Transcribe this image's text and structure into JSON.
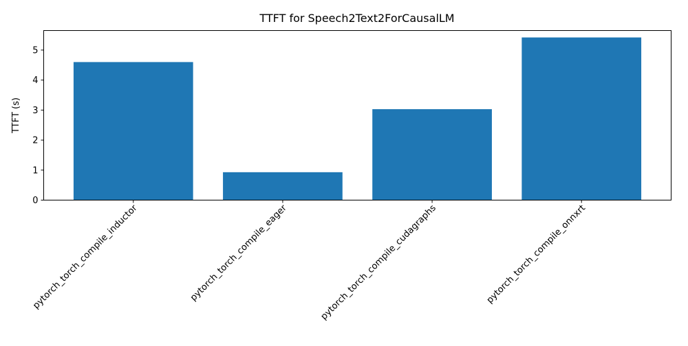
{
  "chart_data": {
    "type": "bar",
    "title": "TTFT for Speech2Text2ForCausalLM",
    "xlabel": "",
    "ylabel": "TTFT (s)",
    "categories": [
      "pytorch_torch_compile_inductor",
      "pytorch_torch_compile_eager",
      "pytorch_torch_compile_cudagraphs",
      "pytorch_torch_compile_onnxrt"
    ],
    "values": [
      4.6,
      0.93,
      3.03,
      5.42
    ],
    "ylim": [
      0,
      5.65
    ],
    "yticks": [
      0,
      1,
      2,
      3,
      4,
      5
    ],
    "grid": false,
    "bar_color": "#1f77b4"
  }
}
